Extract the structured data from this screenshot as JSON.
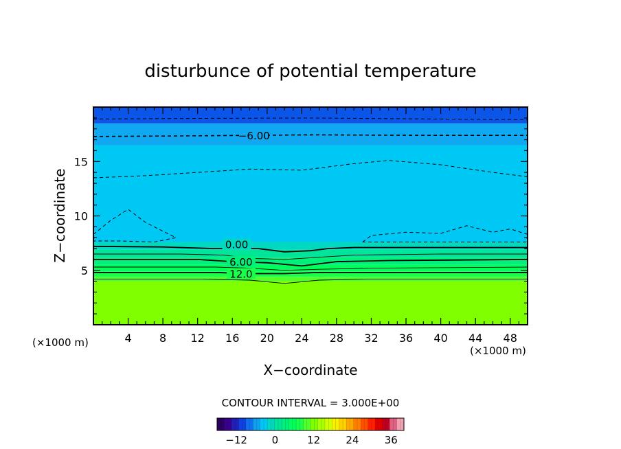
{
  "chart_data": {
    "type": "heatmap",
    "title": "disturbunce of potential temperature",
    "xlabel": "X−coordinate",
    "ylabel": "Z−coordinate",
    "x_unit_left": "(×1000 m)",
    "x_unit_right": "(×1000 m)",
    "xlim": [
      0,
      50
    ],
    "ylim": [
      0,
      20
    ],
    "xticks": [
      4,
      8,
      12,
      16,
      20,
      24,
      28,
      32,
      36,
      40,
      44,
      48
    ],
    "yticks": [
      5,
      10,
      15
    ],
    "contour_interval_text": "CONTOUR INTERVAL = 3.000E+00",
    "contour_labels": [
      {
        "text": "−6.00",
        "x": 18.5,
        "z": 17.4
      },
      {
        "text": "0.00",
        "x": 16.5,
        "z": 7.4
      },
      {
        "text": "6.00",
        "x": 17.0,
        "z": 5.8
      },
      {
        "text": "12.0",
        "x": 17.0,
        "z": 4.7
      }
    ],
    "bands": [
      {
        "z0": 0.0,
        "z1": 4.0,
        "color": "#7fff00",
        "value": 18
      },
      {
        "z0": 4.0,
        "z1": 4.4,
        "color": "#52ff2a",
        "value": 15
      },
      {
        "z0": 4.4,
        "z1": 4.9,
        "color": "#1aff4c",
        "value": 12
      },
      {
        "z0": 4.9,
        "z1": 5.5,
        "color": "#00ff5c",
        "value": 9
      },
      {
        "z0": 5.5,
        "z1": 6.2,
        "color": "#00f07a",
        "value": 6
      },
      {
        "z0": 6.2,
        "z1": 6.9,
        "color": "#00e59a",
        "value": 3
      },
      {
        "z0": 6.9,
        "z1": 7.6,
        "color": "#00d8c0",
        "value": 0
      },
      {
        "z0": 7.6,
        "z1": 16.5,
        "color": "#00c8f4",
        "value": -3
      },
      {
        "z0": 16.5,
        "z1": 18.5,
        "color": "#10a8f0",
        "value": -6
      },
      {
        "z0": 18.5,
        "z1": 20.0,
        "color": "#0b55e8",
        "value": -9
      }
    ],
    "dashed_contours": [
      {
        "value": -9,
        "points": [
          [
            0,
            18.9
          ],
          [
            10,
            18.95
          ],
          [
            25,
            19.0
          ],
          [
            40,
            18.9
          ],
          [
            50,
            18.85
          ]
        ]
      },
      {
        "value": -6,
        "points": [
          [
            0,
            17.3
          ],
          [
            10,
            17.35
          ],
          [
            25,
            17.45
          ],
          [
            40,
            17.4
          ],
          [
            50,
            17.4
          ]
        ]
      },
      {
        "value": -3,
        "points": [
          [
            0,
            13.5
          ],
          [
            6,
            13.7
          ],
          [
            12,
            14.0
          ],
          [
            18,
            14.3
          ],
          [
            24,
            14.2
          ],
          [
            30,
            14.8
          ],
          [
            34,
            15.1
          ],
          [
            40,
            14.7
          ],
          [
            46,
            14.0
          ],
          [
            50,
            13.6
          ]
        ]
      },
      {
        "value": -3,
        "points": [
          [
            0,
            8.3
          ],
          [
            2,
            9.6
          ],
          [
            4,
            10.6
          ],
          [
            6,
            9.4
          ],
          [
            8,
            8.6
          ],
          [
            9.5,
            8.0
          ],
          [
            7,
            7.6
          ],
          [
            3,
            7.7
          ],
          [
            0,
            7.7
          ]
        ]
      },
      {
        "value": -3,
        "points": [
          [
            31,
            7.6
          ],
          [
            32,
            8.2
          ],
          [
            36,
            8.5
          ],
          [
            40,
            8.4
          ],
          [
            43,
            9.1
          ],
          [
            46,
            8.5
          ],
          [
            48,
            8.8
          ],
          [
            50,
            8.3
          ],
          [
            50,
            7.6
          ],
          [
            40,
            7.6
          ],
          [
            31,
            7.6
          ]
        ]
      }
    ],
    "solid_contours": [
      {
        "value": 0,
        "points": [
          [
            0,
            7.2
          ],
          [
            8,
            7.15
          ],
          [
            10,
            7.1
          ],
          [
            14,
            7.0
          ],
          [
            19,
            7.0
          ],
          [
            22,
            6.7
          ],
          [
            25,
            6.8
          ],
          [
            27,
            7.0
          ],
          [
            30,
            7.1
          ],
          [
            40,
            7.1
          ],
          [
            50,
            7.1
          ]
        ]
      },
      {
        "value": 3,
        "points": [
          [
            0,
            6.5
          ],
          [
            10,
            6.5
          ],
          [
            15,
            6.4
          ],
          [
            18,
            6.1
          ],
          [
            22,
            6.0
          ],
          [
            26,
            6.2
          ],
          [
            30,
            6.4
          ],
          [
            40,
            6.5
          ],
          [
            50,
            6.5
          ]
        ]
      },
      {
        "value": 6,
        "points": [
          [
            0,
            6.0
          ],
          [
            12,
            6.0
          ],
          [
            16,
            5.8
          ],
          [
            20,
            5.7
          ],
          [
            24,
            5.4
          ],
          [
            28,
            5.8
          ],
          [
            34,
            5.9
          ],
          [
            50,
            6.0
          ]
        ]
      },
      {
        "value": 9,
        "points": [
          [
            0,
            5.3
          ],
          [
            14,
            5.3
          ],
          [
            18,
            5.2
          ],
          [
            22,
            5.0
          ],
          [
            26,
            5.1
          ],
          [
            32,
            5.2
          ],
          [
            50,
            5.3
          ]
        ]
      },
      {
        "value": 12,
        "points": [
          [
            0,
            4.8
          ],
          [
            14,
            4.8
          ],
          [
            18,
            4.7
          ],
          [
            22,
            4.7
          ],
          [
            26,
            4.8
          ],
          [
            50,
            4.8
          ]
        ]
      },
      {
        "value": 15,
        "points": [
          [
            0,
            4.2
          ],
          [
            12,
            4.2
          ],
          [
            18,
            4.1
          ],
          [
            22,
            3.8
          ],
          [
            26,
            4.1
          ],
          [
            32,
            4.2
          ],
          [
            50,
            4.2
          ]
        ]
      }
    ],
    "colorbar": {
      "vmin": -18,
      "vmax": 40,
      "ticks": [
        -12,
        0,
        12,
        24,
        36
      ],
      "colors": [
        "#2a0060",
        "#3a0090",
        "#2020b8",
        "#1040e0",
        "#1070f0",
        "#10a0f0",
        "#00c8f4",
        "#00d8c0",
        "#00e59a",
        "#00f07a",
        "#00ff5c",
        "#1aff4c",
        "#52ff2a",
        "#7fff00",
        "#a8ff00",
        "#d0ff00",
        "#f8f000",
        "#ffd000",
        "#ffa800",
        "#ff8000",
        "#ff5000",
        "#ff2000",
        "#e00000",
        "#c00020",
        "#e06080",
        "#f0a0b0"
      ]
    }
  }
}
